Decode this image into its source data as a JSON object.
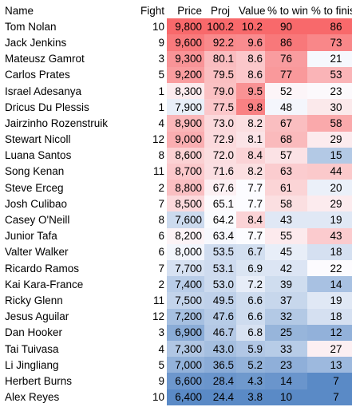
{
  "headers": [
    "Name",
    "Fight",
    "Price",
    "Proj",
    "Value",
    "% to win",
    "% to finish"
  ],
  "rows": [
    {
      "name": "Tom Nolan",
      "fight": "10",
      "price": "9,800",
      "proj": "100.2",
      "value": "10.2",
      "win": "90",
      "finish": "86"
    },
    {
      "name": "Jack Jenkins",
      "fight": "9",
      "price": "9,600",
      "proj": "92.2",
      "value": "9.6",
      "win": "86",
      "finish": "73"
    },
    {
      "name": "Mateusz Gamrot",
      "fight": "3",
      "price": "9,300",
      "proj": "80.1",
      "value": "8.6",
      "win": "76",
      "finish": "21"
    },
    {
      "name": "Carlos Prates",
      "fight": "5",
      "price": "9,200",
      "proj": "79.5",
      "value": "8.6",
      "win": "77",
      "finish": "53"
    },
    {
      "name": "Israel Adesanya",
      "fight": "1",
      "price": "8,300",
      "proj": "79.0",
      "value": "9.5",
      "win": "52",
      "finish": "23"
    },
    {
      "name": "Dricus Du Plessis",
      "fight": "1",
      "price": "7,900",
      "proj": "77.5",
      "value": "9.8",
      "win": "48",
      "finish": "30"
    },
    {
      "name": "Jairzinho Rozenstruik",
      "fight": "4",
      "price": "8,900",
      "proj": "73.0",
      "value": "8.2",
      "win": "67",
      "finish": "58"
    },
    {
      "name": "Stewart Nicoll",
      "fight": "12",
      "price": "9,000",
      "proj": "72.9",
      "value": "8.1",
      "win": "68",
      "finish": "29"
    },
    {
      "name": "Luana Santos",
      "fight": "8",
      "price": "8,600",
      "proj": "72.0",
      "value": "8.4",
      "win": "57",
      "finish": "15"
    },
    {
      "name": "Song Kenan",
      "fight": "11",
      "price": "8,700",
      "proj": "71.6",
      "value": "8.2",
      "win": "63",
      "finish": "44"
    },
    {
      "name": "Steve Erceg",
      "fight": "2",
      "price": "8,800",
      "proj": "67.6",
      "value": "7.7",
      "win": "61",
      "finish": "20"
    },
    {
      "name": "Josh Culibao",
      "fight": "7",
      "price": "8,500",
      "proj": "65.1",
      "value": "7.7",
      "win": "58",
      "finish": "29"
    },
    {
      "name": "Casey O'Neill",
      "fight": "8",
      "price": "7,600",
      "proj": "64.2",
      "value": "8.4",
      "win": "43",
      "finish": "19"
    },
    {
      "name": "Junior Tafa",
      "fight": "6",
      "price": "8,200",
      "proj": "63.4",
      "value": "7.7",
      "win": "55",
      "finish": "43"
    },
    {
      "name": "Valter Walker",
      "fight": "6",
      "price": "8,000",
      "proj": "53.5",
      "value": "6.7",
      "win": "45",
      "finish": "18"
    },
    {
      "name": "Ricardo Ramos",
      "fight": "7",
      "price": "7,700",
      "proj": "53.1",
      "value": "6.9",
      "win": "42",
      "finish": "22"
    },
    {
      "name": "Kai Kara-France",
      "fight": "2",
      "price": "7,400",
      "proj": "53.0",
      "value": "7.2",
      "win": "39",
      "finish": "14"
    },
    {
      "name": "Ricky Glenn",
      "fight": "11",
      "price": "7,500",
      "proj": "49.5",
      "value": "6.6",
      "win": "37",
      "finish": "19"
    },
    {
      "name": "Jesus Aguilar",
      "fight": "12",
      "price": "7,200",
      "proj": "47.6",
      "value": "6.6",
      "win": "32",
      "finish": "18"
    },
    {
      "name": "Dan Hooker",
      "fight": "3",
      "price": "6,900",
      "proj": "46.7",
      "value": "6.8",
      "win": "25",
      "finish": "12"
    },
    {
      "name": "Tai Tuivasa",
      "fight": "4",
      "price": "7,300",
      "proj": "43.0",
      "value": "5.9",
      "win": "33",
      "finish": "27"
    },
    {
      "name": "Li Jingliang",
      "fight": "5",
      "price": "7,000",
      "proj": "36.5",
      "value": "5.2",
      "win": "23",
      "finish": "13"
    },
    {
      "name": "Herbert Burns",
      "fight": "9",
      "price": "6,600",
      "proj": "28.4",
      "value": "4.3",
      "win": "14",
      "finish": "7"
    },
    {
      "name": "Alex Reyes",
      "fight": "10",
      "price": "6,400",
      "proj": "24.4",
      "value": "3.8",
      "win": "10",
      "finish": "7"
    }
  ],
  "colors": {
    "high": "#f8696b",
    "mid": "#fcfcff",
    "low": "#5a8ac6"
  }
}
